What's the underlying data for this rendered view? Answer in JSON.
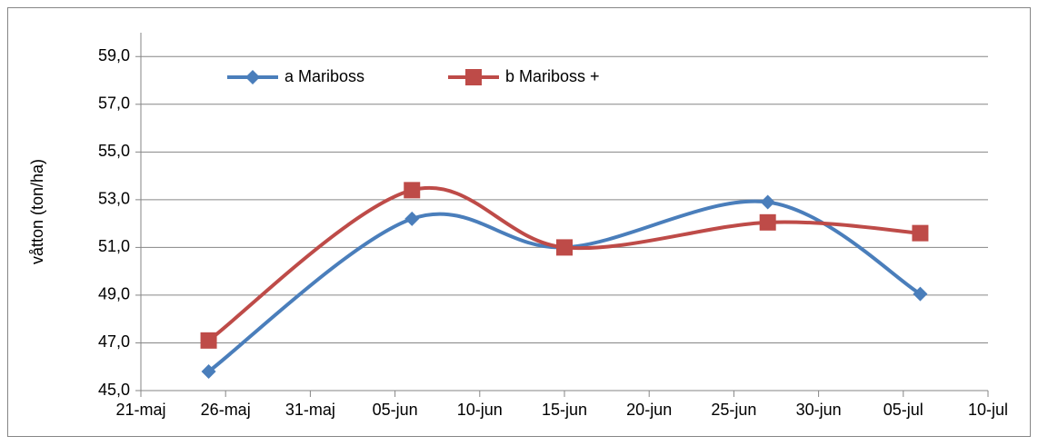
{
  "chart_data": {
    "type": "line",
    "y_label": "våtton (ton/ha)",
    "x": [
      145,
      157,
      166,
      178,
      187
    ],
    "xlim": [
      141,
      191
    ],
    "xticks": [
      {
        "value": 141,
        "label": "21-maj"
      },
      {
        "value": 146,
        "label": "26-maj"
      },
      {
        "value": 151,
        "label": "31-maj"
      },
      {
        "value": 156,
        "label": "05-jun"
      },
      {
        "value": 161,
        "label": "10-jun"
      },
      {
        "value": 166,
        "label": "15-jun"
      },
      {
        "value": 171,
        "label": "20-jun"
      },
      {
        "value": 176,
        "label": "25-jun"
      },
      {
        "value": 181,
        "label": "30-jun"
      },
      {
        "value": 186,
        "label": "05-jul"
      },
      {
        "value": 191,
        "label": "10-jul"
      }
    ],
    "ylim": [
      45,
      60
    ],
    "yticks": [
      {
        "value": 45,
        "label": "45,0"
      },
      {
        "value": 47,
        "label": "47,0"
      },
      {
        "value": 49,
        "label": "49,0"
      },
      {
        "value": 51,
        "label": "51,0"
      },
      {
        "value": 53,
        "label": "53,0"
      },
      {
        "value": 55,
        "label": "55,0"
      },
      {
        "value": 57,
        "label": "57,0"
      },
      {
        "value": 59,
        "label": "59,0"
      }
    ],
    "grid": true,
    "smooth": true,
    "legend": "top-left",
    "series": [
      {
        "name": "a Mariboss",
        "color": "#4a7ebb",
        "marker": "diamond",
        "values": [
          45.8,
          52.2,
          51.0,
          52.9,
          49.05
        ]
      },
      {
        "name": "b Mariboss +",
        "color": "#be4b48",
        "marker": "square",
        "values": [
          47.1,
          53.4,
          51.0,
          52.05,
          51.6
        ]
      }
    ]
  }
}
